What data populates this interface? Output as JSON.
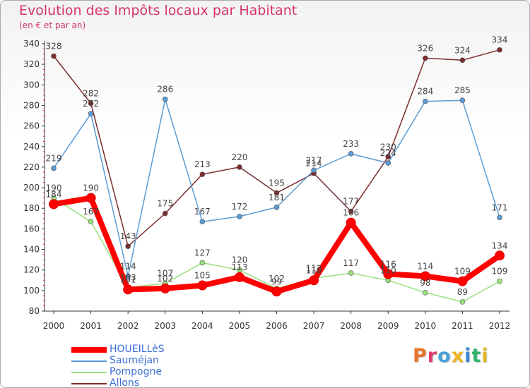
{
  "title": "Evolution des Impôts locaux par Habitant",
  "subtitle": "(en € et par an)",
  "logo_text": "Proxiti",
  "logo_colors": [
    "#e8742a",
    "#e03c6e",
    "#46a0d6",
    "#f0b420",
    "#3a86d0",
    "#2fb36a",
    "#e0b820"
  ],
  "chart_data": {
    "type": "line",
    "title": "Evolution des Impôts locaux par Habitant",
    "subtitle": "(en € et par an)",
    "x": [
      "2000",
      "2001",
      "2002",
      "2003",
      "2004",
      "2005",
      "2006",
      "2007",
      "2008",
      "2009",
      "2010",
      "2011",
      "2012"
    ],
    "ylim": [
      80,
      340
    ],
    "yticks": [
      80,
      100,
      120,
      140,
      160,
      180,
      200,
      220,
      240,
      260,
      280,
      300,
      320,
      340
    ],
    "grid": false,
    "legend_position": "bottom-left",
    "series": [
      {
        "name": "HOUEILLèS",
        "color": "#ff0000",
        "values": [
          184,
          190,
          101,
          102,
          105,
          113,
          99,
          110,
          166,
          116,
          114,
          109,
          134
        ]
      },
      {
        "name": "Sauméjan",
        "color": "#5b9bd5",
        "values": [
          219,
          272,
          114,
          286,
          167,
          172,
          181,
          217,
          233,
          224,
          284,
          285,
          171
        ]
      },
      {
        "name": "Pompogne",
        "color": "#99e07a",
        "values": [
          190,
          167,
          103,
          107,
          127,
          120,
          102,
          112,
          117,
          110,
          98,
          89,
          109
        ]
      },
      {
        "name": "Allons",
        "color": "#7b2d2d",
        "values": [
          328,
          282,
          143,
          175,
          213,
          220,
          195,
          214,
          177,
          230,
          326,
          324,
          334
        ]
      }
    ]
  }
}
